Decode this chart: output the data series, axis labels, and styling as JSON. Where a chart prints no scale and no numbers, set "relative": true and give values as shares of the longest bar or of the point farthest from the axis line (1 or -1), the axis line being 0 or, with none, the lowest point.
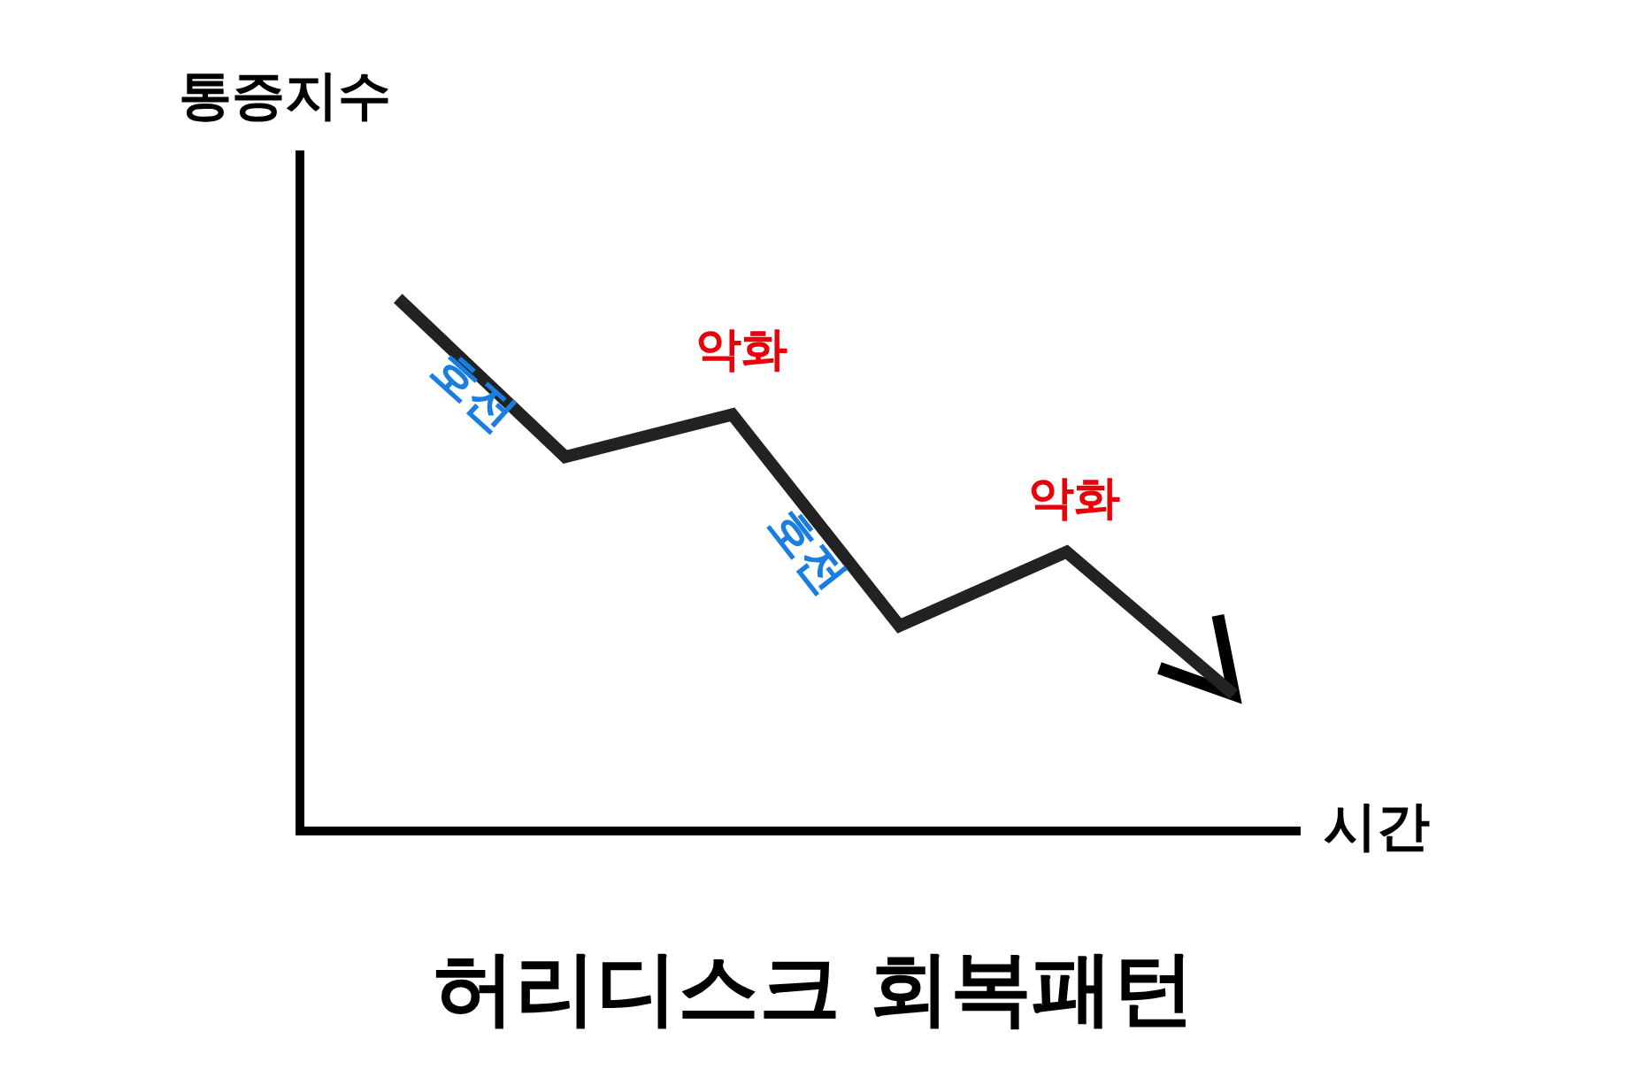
{
  "chart_data": {
    "type": "line",
    "title": "허리디스크 회복패턴",
    "xlabel": "시간",
    "ylabel": "통증지수",
    "categories": [
      null,
      null,
      null,
      null,
      null,
      null
    ],
    "relative": true,
    "marker": "none",
    "line_style": "solid",
    "series": [
      {
        "color": "#222222",
        "values": [
          1,
          0.7,
          0.78,
          0.38,
          0.52,
          0.25
        ]
      }
    ],
    "annotations": [
      "호전",
      "악화",
      "호전",
      "악화"
    ]
  }
}
